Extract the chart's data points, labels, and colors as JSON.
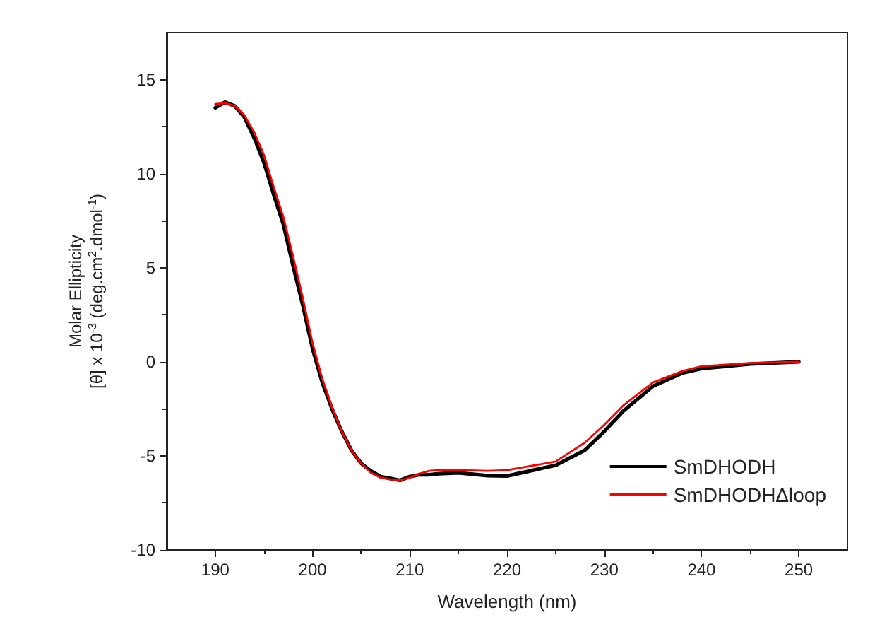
{
  "chart_data": {
    "type": "line",
    "xlabel": "Wavelength (nm)",
    "ylabel": "Molar Ellipticity\n[θ] x 10$^{-3}$ (deg.cm$^{2}$.dmol$^{-1}$)",
    "xlim": [
      185,
      255
    ],
    "xticks": [
      190,
      200,
      210,
      220,
      230,
      240,
      250
    ],
    "ylim": [
      -10,
      17.5
    ],
    "yticks": [
      -10,
      -5,
      0,
      5,
      10,
      15
    ],
    "grid": false,
    "legend": "bottom right",
    "marker": "none",
    "line_style": "solid",
    "series": [
      {
        "name": "SmDHODH",
        "color": "#000000",
        "x": [
          190,
          191,
          192,
          193,
          194,
          195,
          196,
          197,
          198,
          199,
          200,
          201,
          202,
          203,
          204,
          205,
          206,
          207,
          208,
          209,
          210,
          211,
          212,
          213,
          215,
          218,
          220,
          225,
          228,
          230,
          232,
          235,
          238,
          240,
          245,
          250
        ],
        "values": [
          13.5,
          13.8,
          13.6,
          13.0,
          11.9,
          10.6,
          8.9,
          7.3,
          5.1,
          3.0,
          0.7,
          -1.1,
          -2.5,
          -3.7,
          -4.7,
          -5.4,
          -5.8,
          -6.1,
          -6.2,
          -6.3,
          -6.1,
          -6.0,
          -6.0,
          -5.95,
          -5.9,
          -6.05,
          -6.07,
          -5.5,
          -4.7,
          -3.7,
          -2.6,
          -1.3,
          -0.6,
          -0.36,
          -0.12,
          0
        ]
      },
      {
        "name": "SmDHODHΔloop",
        "color": "#ff0000",
        "x": [
          190,
          191,
          192,
          193,
          194,
          195,
          196,
          197,
          198,
          199,
          200,
          201,
          202,
          203,
          204,
          205,
          206,
          207,
          208,
          209,
          210,
          211,
          212,
          213,
          215,
          218,
          220,
          225,
          228,
          230,
          232,
          235,
          238,
          240,
          245,
          250
        ],
        "values": [
          13.7,
          13.75,
          13.6,
          13.1,
          12.2,
          11.0,
          9.3,
          7.7,
          5.6,
          3.4,
          1.0,
          -0.9,
          -2.4,
          -3.7,
          -4.7,
          -5.4,
          -5.9,
          -6.15,
          -6.25,
          -6.3,
          -6.15,
          -5.95,
          -5.8,
          -5.75,
          -5.75,
          -5.8,
          -5.76,
          -5.3,
          -4.3,
          -3.35,
          -2.3,
          -1.1,
          -0.5,
          -0.24,
          -0.07,
          0
        ]
      }
    ]
  }
}
